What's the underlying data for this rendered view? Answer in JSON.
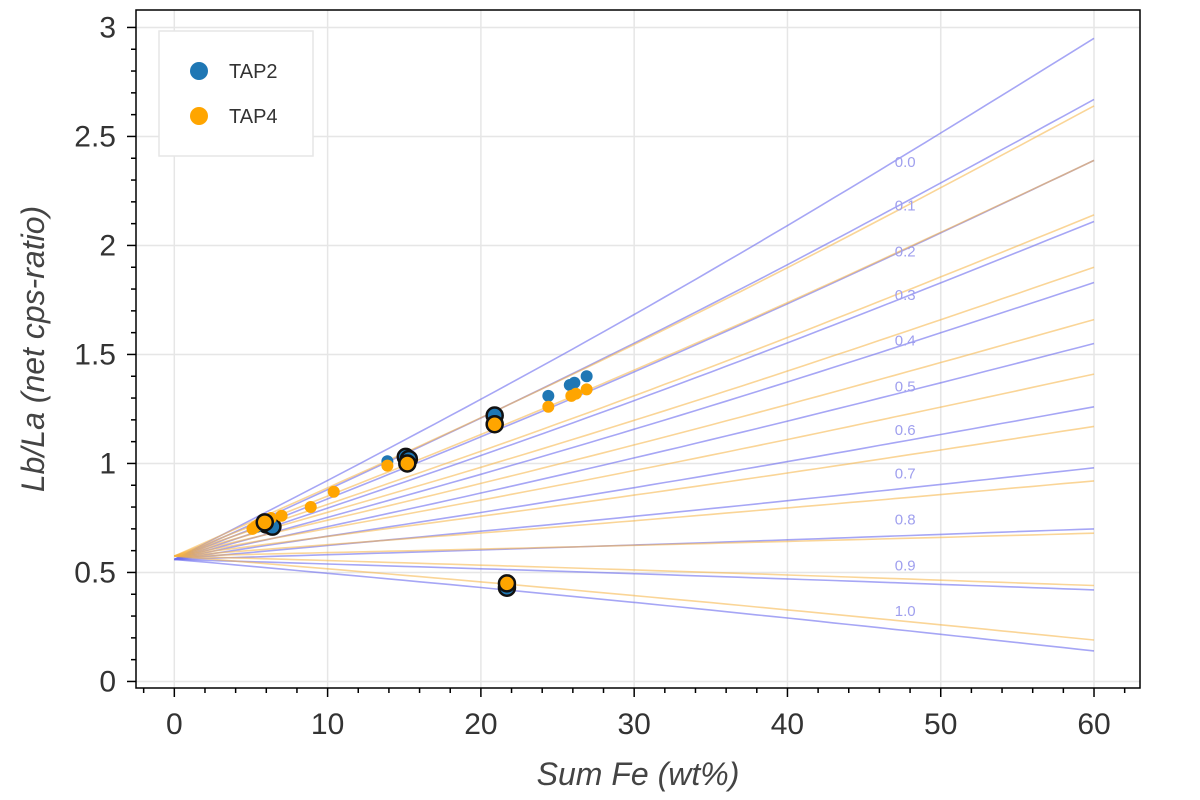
{
  "colors": {
    "tap2": "#1f77b4",
    "tap4": "#ffa500",
    "tap2_curve": "#6a6aee",
    "tap4_curve": "#f5b342",
    "curve_label": "#9f9fee",
    "grid": "#e6e6e6",
    "frame": "#000000"
  },
  "chart_data": {
    "type": "scatter",
    "xlabel": "Sum Fe (wt%)",
    "ylabel": "Lb/La (net cps-ratio)",
    "xlim": [
      -2.5,
      63
    ],
    "ylim": [
      -0.03,
      3.08
    ],
    "x_ticks": [
      0,
      10,
      20,
      30,
      40,
      50,
      60
    ],
    "x_tick_labels": [
      "0",
      "10",
      "20",
      "30",
      "40",
      "50",
      "60"
    ],
    "y_ticks": [
      0,
      0.5,
      1,
      1.5,
      2,
      2.5,
      3
    ],
    "y_tick_labels": [
      "0",
      "0.5",
      "1",
      "1.5",
      "2",
      "2.5",
      "3"
    ],
    "grid": true,
    "legend": {
      "position": "top-left",
      "entries": [
        {
          "label": "TAP2",
          "series": "tap2"
        },
        {
          "label": "TAP4",
          "series": "tap4"
        }
      ]
    },
    "series": [
      {
        "name": "TAP2",
        "key": "tap2",
        "points": [
          {
            "x": 13.9,
            "y": 1.01,
            "outlined": false
          },
          {
            "x": 24.4,
            "y": 1.31,
            "outlined": false
          },
          {
            "x": 25.8,
            "y": 1.36,
            "outlined": false
          },
          {
            "x": 26.1,
            "y": 1.37,
            "outlined": false
          },
          {
            "x": 26.9,
            "y": 1.4,
            "outlined": false
          },
          {
            "x": 15.1,
            "y": 1.03,
            "outlined": true
          },
          {
            "x": 15.3,
            "y": 1.02,
            "outlined": true
          },
          {
            "x": 20.9,
            "y": 1.22,
            "outlined": true
          },
          {
            "x": 21.7,
            "y": 0.43,
            "outlined": true
          },
          {
            "x": 6.0,
            "y": 0.72,
            "outlined": true
          },
          {
            "x": 6.4,
            "y": 0.71,
            "outlined": true
          },
          {
            "x": 5.4,
            "y": 0.71,
            "outlined": false
          }
        ]
      },
      {
        "name": "TAP4",
        "key": "tap4",
        "points": [
          {
            "x": 5.1,
            "y": 0.7,
            "outlined": false
          },
          {
            "x": 5.3,
            "y": 0.71,
            "outlined": false
          },
          {
            "x": 5.5,
            "y": 0.72,
            "outlined": false
          },
          {
            "x": 6.3,
            "y": 0.75,
            "outlined": false
          },
          {
            "x": 7.0,
            "y": 0.76,
            "outlined": false
          },
          {
            "x": 8.9,
            "y": 0.8,
            "outlined": false
          },
          {
            "x": 10.4,
            "y": 0.87,
            "outlined": false
          },
          {
            "x": 13.9,
            "y": 0.99,
            "outlined": false
          },
          {
            "x": 24.4,
            "y": 1.26,
            "outlined": false
          },
          {
            "x": 25.9,
            "y": 1.31,
            "outlined": false
          },
          {
            "x": 26.2,
            "y": 1.32,
            "outlined": false
          },
          {
            "x": 26.9,
            "y": 1.34,
            "outlined": false
          },
          {
            "x": 5.9,
            "y": 0.73,
            "outlined": true
          },
          {
            "x": 15.2,
            "y": 1.0,
            "outlined": true
          },
          {
            "x": 20.9,
            "y": 1.18,
            "outlined": true
          },
          {
            "x": 21.7,
            "y": 0.45,
            "outlined": true
          }
        ]
      }
    ],
    "curve_families": [
      {
        "key": "tap2",
        "start": 0.56,
        "end_values_at_x60": [
          2.95,
          2.67,
          2.39,
          2.11,
          1.83,
          1.55,
          1.26,
          0.98,
          0.7,
          0.42,
          0.14
        ]
      },
      {
        "key": "tap4",
        "start": 0.575,
        "end_values_at_x60": [
          2.64,
          2.39,
          2.14,
          1.9,
          1.66,
          1.41,
          1.17,
          0.92,
          0.68,
          0.44,
          0.19
        ]
      }
    ],
    "curve_labels": [
      "0.0",
      "0.1",
      "0.2",
      "0.3",
      "0.4",
      "0.5",
      "0.6",
      "0.7",
      "0.8",
      "0.9",
      "1.0"
    ],
    "curve_label_values": [
      0.0,
      0.1,
      0.2,
      0.3,
      0.4,
      0.5,
      0.6,
      0.7,
      0.8,
      0.9,
      1.0
    ],
    "curve_label_y": [
      2.36,
      2.16,
      1.95,
      1.75,
      1.54,
      1.33,
      1.13,
      0.93,
      0.72,
      0.51,
      0.3
    ],
    "curve_label_x": 47
  }
}
